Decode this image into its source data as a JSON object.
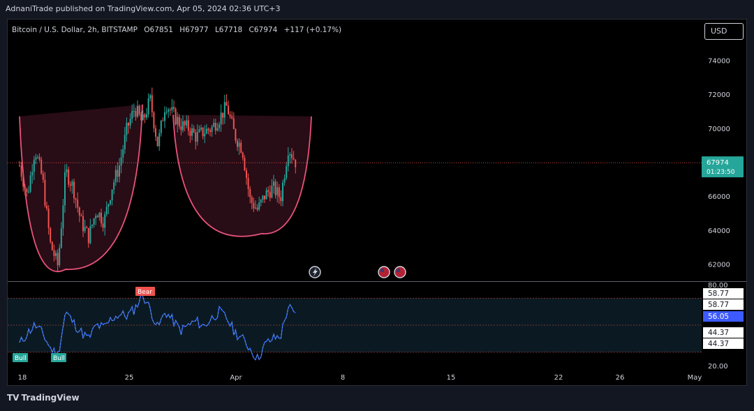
{
  "header": {
    "text": "AdnaniTrade published on TradingView.com, Apr 05, 2024 02:36 UTC+3"
  },
  "legend": {
    "symbol": "Bitcoin / U.S. Dollar, 2h, BITSTAMP",
    "open": "O67851",
    "high": "H67977",
    "low": "L67718",
    "close": "C67974",
    "change": "+117 (+0.17%)"
  },
  "unit_button": "USD",
  "footer": {
    "brand": "TradingView",
    "logo": "TV"
  },
  "colors": {
    "background": "#000000",
    "up": "#26a69a",
    "down": "#ef5350",
    "pattern_fill": "#2a0d17",
    "pattern_line": "#e8527a",
    "rsi_line": "#2962ff",
    "rsi_band": "#0b1a22"
  },
  "chart_data": [
    {
      "type": "candlestick",
      "title": "Bitcoin / U.S. Dollar, 2h, BITSTAMP",
      "x_ticks": [
        "18",
        "25",
        "Apr",
        "8",
        "15",
        "22",
        "26",
        "May"
      ],
      "y_ticks": [
        62000,
        64000,
        66000,
        68000,
        70000,
        72000,
        74000
      ],
      "y_tick_labels": [
        "62000",
        "64000",
        "66000",
        "68000",
        "70000",
        "72000",
        "74000"
      ],
      "ylim": [
        61000,
        76400
      ],
      "last_price": 67974,
      "last_price_label": "67974",
      "countdown_label": "01:23:50",
      "price_path": [
        {
          "date": "2024-03-18",
          "price": 67800
        },
        {
          "date": "2024-03-18T12",
          "price": 66000
        },
        {
          "date": "2024-03-19",
          "price": 68800
        },
        {
          "date": "2024-03-19T12",
          "price": 67000
        },
        {
          "date": "2024-03-20",
          "price": 63200
        },
        {
          "date": "2024-03-20T12",
          "price": 61900
        },
        {
          "date": "2024-03-21",
          "price": 67500
        },
        {
          "date": "2024-03-21T12",
          "price": 66500
        },
        {
          "date": "2024-03-22",
          "price": 64500
        },
        {
          "date": "2024-03-22T12",
          "price": 63600
        },
        {
          "date": "2024-03-23",
          "price": 65200
        },
        {
          "date": "2024-03-23T12",
          "price": 64500
        },
        {
          "date": "2024-03-24",
          "price": 66500
        },
        {
          "date": "2024-03-24T12",
          "price": 67800
        },
        {
          "date": "2024-03-25",
          "price": 70000
        },
        {
          "date": "2024-03-25T12",
          "price": 71200
        },
        {
          "date": "2024-03-26",
          "price": 70300
        },
        {
          "date": "2024-03-26T12",
          "price": 71700
        },
        {
          "date": "2024-03-27",
          "price": 69000
        },
        {
          "date": "2024-03-27T12",
          "price": 71500
        },
        {
          "date": "2024-03-28",
          "price": 70800
        },
        {
          "date": "2024-03-28T12",
          "price": 70200
        },
        {
          "date": "2024-03-29",
          "price": 70000
        },
        {
          "date": "2024-03-29T12",
          "price": 69500
        },
        {
          "date": "2024-03-30",
          "price": 69800
        },
        {
          "date": "2024-03-30T12",
          "price": 70000
        },
        {
          "date": "2024-03-31",
          "price": 70600
        },
        {
          "date": "2024-03-31T12",
          "price": 71300
        },
        {
          "date": "2024-04-01",
          "price": 69600
        },
        {
          "date": "2024-04-01T12",
          "price": 68800
        },
        {
          "date": "2024-04-02",
          "price": 65800
        },
        {
          "date": "2024-04-02T12",
          "price": 65200
        },
        {
          "date": "2024-04-03",
          "price": 66100
        },
        {
          "date": "2024-04-03T12",
          "price": 66500
        },
        {
          "date": "2024-04-04",
          "price": 65900
        },
        {
          "date": "2024-04-04T12",
          "price": 68900
        },
        {
          "date": "2024-04-05",
          "price": 67974
        }
      ],
      "pattern_left": {
        "start": {
          "date": "2024-03-18",
          "price": 70700
        },
        "rim": {
          "date": "2024-03-26",
          "price": 71400
        },
        "bottom": {
          "date": "2024-03-21",
          "price": 61700
        }
      },
      "pattern_right": {
        "start": {
          "date": "2024-03-28",
          "price": 70800
        },
        "rim": {
          "date": "2024-04-06",
          "price": 70700
        },
        "bottom": {
          "date": "2024-04-02T18",
          "price": 63800
        }
      }
    },
    {
      "type": "line",
      "title": "",
      "y_ticks": [
        20,
        80
      ],
      "y_tick_labels": [
        "20.00",
        "80.00"
      ],
      "ylim": [
        18,
        82
      ],
      "bands": [
        30,
        50,
        70
      ],
      "value_labels": [
        "58.77",
        "58.77",
        "56.05",
        "44.37",
        "44.37"
      ],
      "signals": [
        {
          "label": "Bear",
          "date": "2024-03-26"
        },
        {
          "label": "Bull",
          "date": "2024-03-20T12"
        },
        {
          "label": "Bull",
          "date": "2024-03-18"
        }
      ],
      "rsi_path": [
        {
          "date": "2024-03-18",
          "value": 36
        },
        {
          "date": "2024-03-18T12",
          "value": 44
        },
        {
          "date": "2024-03-19",
          "value": 50
        },
        {
          "date": "2024-03-19T12",
          "value": 44
        },
        {
          "date": "2024-03-20",
          "value": 33
        },
        {
          "date": "2024-03-20T12",
          "value": 28
        },
        {
          "date": "2024-03-21",
          "value": 60
        },
        {
          "date": "2024-03-21T12",
          "value": 52
        },
        {
          "date": "2024-03-22",
          "value": 45
        },
        {
          "date": "2024-03-22T12",
          "value": 40
        },
        {
          "date": "2024-03-23",
          "value": 50
        },
        {
          "date": "2024-03-23T12",
          "value": 48
        },
        {
          "date": "2024-03-24",
          "value": 55
        },
        {
          "date": "2024-03-24T12",
          "value": 58
        },
        {
          "date": "2024-03-25",
          "value": 57
        },
        {
          "date": "2024-03-25T12",
          "value": 62
        },
        {
          "date": "2024-03-26",
          "value": 73
        },
        {
          "date": "2024-03-26T12",
          "value": 62
        },
        {
          "date": "2024-03-27",
          "value": 48
        },
        {
          "date": "2024-03-27T12",
          "value": 60
        },
        {
          "date": "2024-03-28",
          "value": 53
        },
        {
          "date": "2024-03-28T12",
          "value": 46
        },
        {
          "date": "2024-03-29",
          "value": 50
        },
        {
          "date": "2024-03-29T12",
          "value": 53
        },
        {
          "date": "2024-03-30",
          "value": 49
        },
        {
          "date": "2024-03-30T12",
          "value": 55
        },
        {
          "date": "2024-03-31",
          "value": 60
        },
        {
          "date": "2024-03-31T12",
          "value": 55
        },
        {
          "date": "2024-04-01",
          "value": 45
        },
        {
          "date": "2024-04-01T12",
          "value": 40
        },
        {
          "date": "2024-04-02",
          "value": 33
        },
        {
          "date": "2024-04-02T12",
          "value": 25
        },
        {
          "date": "2024-04-03",
          "value": 36
        },
        {
          "date": "2024-04-03T12",
          "value": 40
        },
        {
          "date": "2024-04-04",
          "value": 42
        },
        {
          "date": "2024-04-04T12",
          "value": 64
        },
        {
          "date": "2024-04-05",
          "value": 56
        }
      ]
    }
  ]
}
